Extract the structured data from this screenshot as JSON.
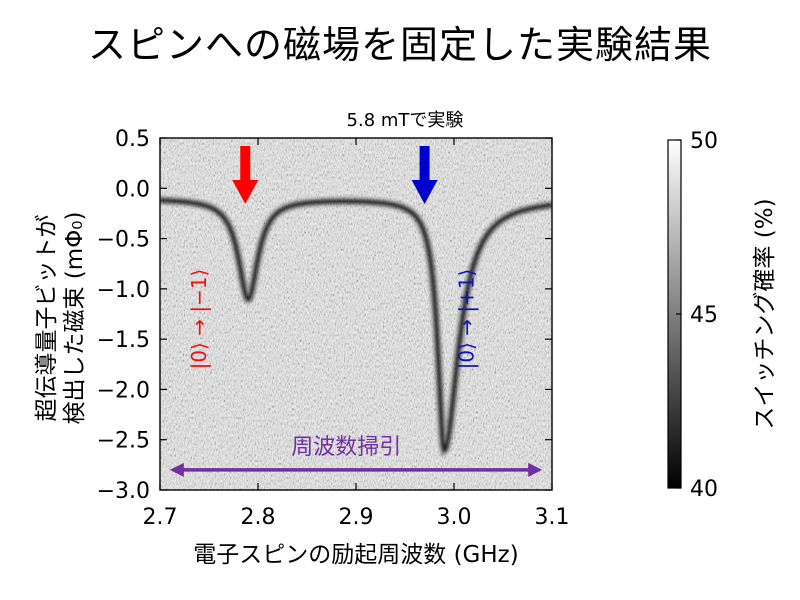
{
  "title": "スピンへの磁場を固定した実験結果",
  "chart_data": {
    "type": "heatmap",
    "title": "スピンへの磁場を固定した実験結果",
    "xlabel": "電子スピンの励起周波数 (GHz)",
    "ylabel_lines": [
      "超伝導量子ビットが",
      "検出した磁束 (mΦ₀)"
    ],
    "xlim": [
      2.7,
      3.1
    ],
    "ylim": [
      -3.0,
      0.5
    ],
    "x_ticks": [
      2.7,
      2.8,
      2.9,
      3.0,
      3.1
    ],
    "x_tick_labels": [
      "2.7",
      "2.8",
      "2.9",
      "3.0",
      "3.1"
    ],
    "y_ticks": [
      0.5,
      0.0,
      -0.5,
      -1.0,
      -1.5,
      -2.0,
      -2.5,
      -3.0
    ],
    "y_tick_labels": [
      "0.5",
      "0.0",
      "−0.5",
      "−1.0",
      "−1.5",
      "−2.0",
      "−2.5",
      "−3.0"
    ],
    "colorbar": {
      "label": "スイッチング確率 (%)",
      "min": 40,
      "max": 50,
      "ticks": [
        50,
        45,
        40
      ],
      "tick_labels": [
        "50",
        "45",
        "40"
      ]
    },
    "baseline_flux": -0.1,
    "dips": [
      {
        "center_ghz": 2.79,
        "depth": -1.1,
        "label": "|0⟩ → |−1⟩",
        "color": "#ee1111"
      },
      {
        "center_ghz": 2.99,
        "depth": -2.6,
        "label": "|0⟩ → |+1⟩",
        "color": "#1111bb"
      }
    ],
    "annotations": {
      "field": "5.8 mTで実験",
      "sweep": "周波数掃引",
      "sweep_from_ghz": 2.71,
      "sweep_to_ghz": 3.09,
      "sweep_y": -2.8,
      "sweep_color": "#7030a0",
      "arrow_red": "#ff0000",
      "arrow_blue": "#0000cc"
    }
  }
}
